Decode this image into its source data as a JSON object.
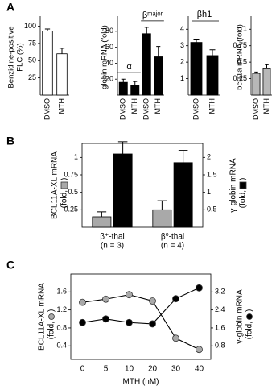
{
  "chart_data": [
    {
      "type": "bar",
      "panel_label": "A",
      "y_label": [
        "Benzidine-positive",
        "FLC (%)"
      ],
      "categories": [
        "DMSO",
        "MTH"
      ],
      "series": [
        {
          "color": "#ffffff",
          "values": [
            93,
            60
          ],
          "errors": [
            3,
            8
          ]
        }
      ],
      "ylim": [
        0,
        110
      ],
      "yticks": [
        25,
        50,
        75,
        100
      ]
    },
    {
      "type": "bar",
      "y_label": [
        "globin mRNA (fold)"
      ],
      "categories": [
        "DMSO",
        "MTH",
        "DMSO",
        "MTH"
      ],
      "group_labels": [
        "α",
        "βᵐᵃʲᵒʳ"
      ],
      "series": [
        {
          "color": "#000000",
          "values": [
            16,
            12,
            77,
            48
          ],
          "errors": [
            4,
            5,
            8,
            13
          ]
        }
      ],
      "ylim": [
        0,
        95
      ],
      "yticks": [
        20,
        40,
        60,
        80
      ]
    },
    {
      "type": "bar",
      "title": "βh1",
      "categories": [
        "DMSO",
        "MTH"
      ],
      "series": [
        {
          "color": "#000000",
          "values": [
            3.2,
            2.4
          ],
          "errors": [
            0.15,
            0.35
          ]
        }
      ],
      "ylim": [
        0,
        4.6
      ],
      "yticks": [
        1,
        2,
        3,
        4
      ]
    },
    {
      "type": "bar",
      "y_label": [
        "bcl11a mRNA (fold)"
      ],
      "categories": [
        "DMSO",
        "MTH"
      ],
      "series": [
        {
          "color": "#b8b8b8",
          "values": [
            0.33,
            0.4
          ],
          "errors": [
            0.02,
            0.06
          ]
        }
      ],
      "ylim": [
        0,
        1.15
      ],
      "yticks": [
        0.25,
        0.5,
        0.75,
        1
      ]
    },
    {
      "type": "bar",
      "panel_label": "B",
      "categories": [
        "β⁺-thal",
        "β⁰-thal"
      ],
      "category_sublabels": [
        "(n = 3)",
        "(n = 4)"
      ],
      "y_label": [
        "BCL11A-XL mRNA",
        "(fold,",
        ")"
      ],
      "y2_label": [
        "γ-globin mRNA",
        "(fold,",
        ")"
      ],
      "series": [
        {
          "color": "#a9a9a9",
          "values": [
            0.15,
            0.25
          ],
          "errors": [
            0.07,
            0.13
          ]
        },
        {
          "color": "#000000",
          "axis": "y2",
          "values": [
            2.1,
            1.85
          ],
          "errors": [
            0.35,
            0.35
          ]
        }
      ],
      "ylim": [
        0,
        1.2
      ],
      "yticks": [
        0.25,
        0.5,
        0.75,
        1
      ],
      "y2lim": [
        0,
        2.4
      ],
      "y2ticks": [
        0.5,
        1,
        1.5,
        2
      ]
    },
    {
      "type": "line",
      "panel_label": "C",
      "x_label": "MTH (nM)",
      "categories": [
        "0",
        "5",
        "10",
        "20",
        "30",
        "40"
      ],
      "y_label": [
        "BCL11A-XL mRNA",
        "(fold,",
        ")"
      ],
      "y2_label": [
        "γ-globin mRNA",
        "(fold,",
        ")"
      ],
      "series": [
        {
          "color": "#a9a9a9",
          "values": [
            1.37,
            1.44,
            1.54,
            1.4,
            0.57,
            0.32
          ]
        },
        {
          "color": "#000000",
          "axis": "y2",
          "values": [
            1.84,
            2.0,
            1.84,
            1.78,
            2.9,
            3.38
          ]
        }
      ],
      "ylim": [
        0.1,
        2.0
      ],
      "yticks": [
        0.4,
        0.8,
        1.2,
        1.6
      ],
      "y2lim": [
        0.2,
        4.0
      ],
      "y2ticks": [
        0.8,
        1.6,
        2.4,
        3.2
      ]
    }
  ]
}
